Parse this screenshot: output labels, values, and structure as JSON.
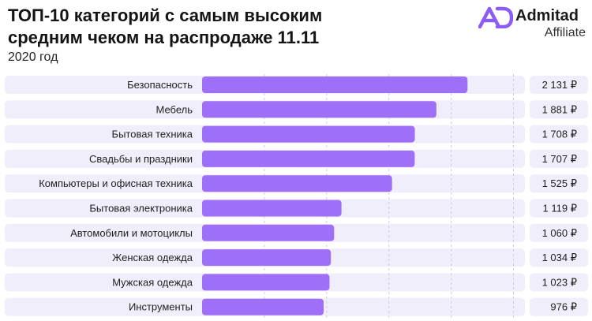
{
  "header": {
    "title": "ТОП-10 категорий с самым высоким средним чеком на распродаже 11.11",
    "subtitle": "2020 год"
  },
  "logo": {
    "icon": "admitad-ad-logo-icon",
    "name": "Admitad",
    "sub": "Affiliate",
    "color": "#8b5cf6"
  },
  "colors": {
    "bar": "#a06ff8",
    "row_bg": "#f0eefb",
    "grid": "#cfc7ee"
  },
  "chart_data": {
    "type": "bar",
    "orientation": "horizontal",
    "title": "ТОП-10 категорий с самым высоким средним чеком на распродаже 11.11",
    "subtitle": "2020 год",
    "categories": [
      "Безопасность",
      "Мебель",
      "Бытовая техника",
      "Свадьбы и праздники",
      "Компьютеры и офисная техника",
      "Бытовая электроника",
      "Автомобили и мотоциклы",
      "Женская одежда",
      "Мужская одежда",
      "Инструменты"
    ],
    "values": [
      2131,
      1881,
      1708,
      1707,
      1525,
      1119,
      1060,
      1034,
      1023,
      976
    ],
    "value_labels": [
      "2 131 ₽",
      "1 881 ₽",
      "1 708 ₽",
      "1 707 ₽",
      "1 525 ₽",
      "1 119 ₽",
      "1 060 ₽",
      "1 034 ₽",
      "1 023 ₽",
      "976 ₽"
    ],
    "unit": "₽",
    "xlim": [
      0,
      2560
    ],
    "grid": true,
    "legend": "none"
  }
}
